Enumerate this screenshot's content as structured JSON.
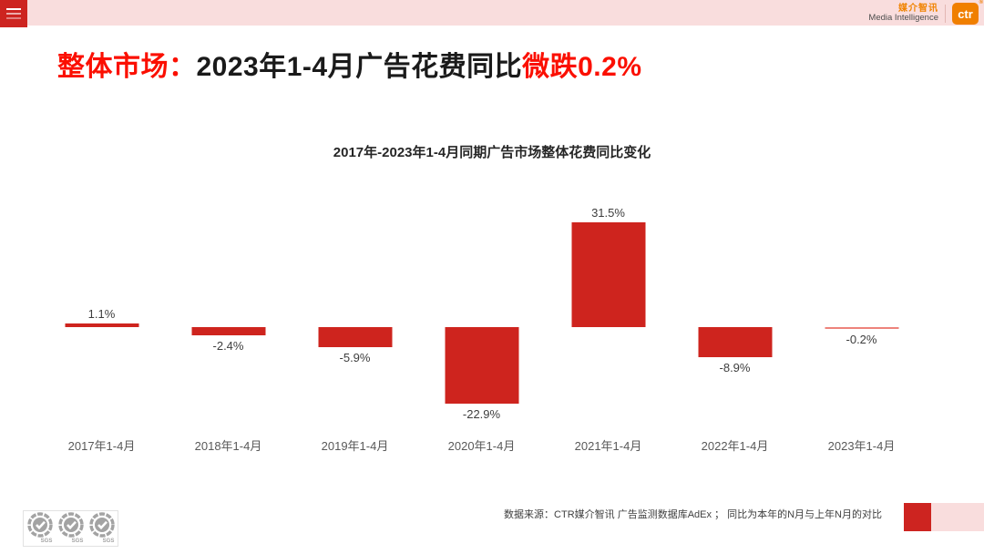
{
  "topbar": {
    "brand_cn": "媒介智讯",
    "brand_en": "Media Intelligence",
    "logo_text": "ctr",
    "registered_mark": "®"
  },
  "header": {
    "title_red_prefix": "整体市场：",
    "title_black": "2023年1-4月广告花费同比",
    "title_red_suffix": "微跌0.2%"
  },
  "chart_data": {
    "type": "bar",
    "title": "2017年-2023年1-4月同期广告市场整体花费同比变化",
    "categories": [
      "2017年1-4月",
      "2018年1-4月",
      "2019年1-4月",
      "2020年1-4月",
      "2021年1-4月",
      "2022年1-4月",
      "2023年1-4月"
    ],
    "values": [
      1.1,
      -2.4,
      -5.9,
      -22.9,
      31.5,
      -8.9,
      -0.2
    ],
    "labels": [
      "1.1%",
      "-2.4%",
      "-5.9%",
      "-22.9%",
      "31.5%",
      "-8.9%",
      "-0.2%"
    ],
    "unit": "%",
    "xlabel": "",
    "ylabel": "",
    "ylim": [
      -25,
      35
    ],
    "grid": false,
    "legend": false,
    "bar_color": "#ce241e",
    "thin_bar_color": "#ed837b"
  },
  "footer": {
    "source_text": "数据来源：CTR媒介智讯 广告监测数据库AdEx ；  同比为本年的N月与上年N月的对比",
    "sgs_label": "SGS"
  },
  "colors": {
    "accent_red": "#cd2420",
    "light_pink": "#f9dddd",
    "title_red": "#fb0f00",
    "brand_orange": "#f08300"
  }
}
